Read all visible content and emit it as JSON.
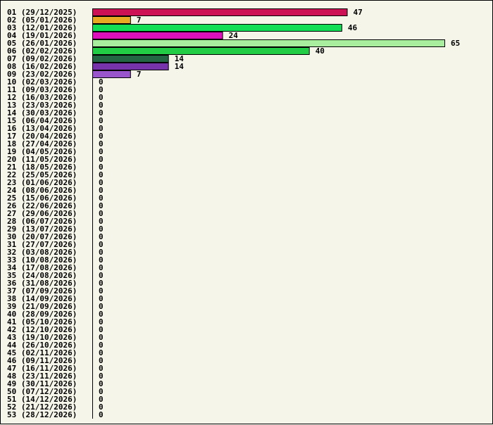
{
  "chart_data": {
    "type": "bar",
    "orientation": "horizontal",
    "title": "",
    "xlabel": "",
    "ylabel": "",
    "xlim": [
      0,
      65
    ],
    "grid": false,
    "categories": [
      "01 (29/12/2025)",
      "02 (05/01/2026)",
      "03 (12/01/2026)",
      "04 (19/01/2026)",
      "05 (26/01/2026)",
      "06 (02/02/2026)",
      "07 (09/02/2026)",
      "08 (16/02/2026)",
      "09 (23/02/2026)",
      "10 (02/03/2026)",
      "11 (09/03/2026)",
      "12 (16/03/2026)",
      "13 (23/03/2026)",
      "14 (30/03/2026)",
      "15 (06/04/2026)",
      "16 (13/04/2026)",
      "17 (20/04/2026)",
      "18 (27/04/2026)",
      "19 (04/05/2026)",
      "20 (11/05/2026)",
      "21 (18/05/2026)",
      "22 (25/05/2026)",
      "23 (01/06/2026)",
      "24 (08/06/2026)",
      "25 (15/06/2026)",
      "26 (22/06/2026)",
      "27 (29/06/2026)",
      "28 (06/07/2026)",
      "29 (13/07/2026)",
      "30 (20/07/2026)",
      "31 (27/07/2026)",
      "32 (03/08/2026)",
      "33 (10/08/2026)",
      "34 (17/08/2026)",
      "35 (24/08/2026)",
      "36 (31/08/2026)",
      "37 (07/09/2026)",
      "38 (14/09/2026)",
      "39 (21/09/2026)",
      "40 (28/09/2026)",
      "41 (05/10/2026)",
      "42 (12/10/2026)",
      "43 (19/10/2026)",
      "44 (26/10/2026)",
      "45 (02/11/2026)",
      "46 (09/11/2026)",
      "47 (16/11/2026)",
      "48 (23/11/2026)",
      "49 (30/11/2026)",
      "50 (07/12/2026)",
      "51 (14/12/2026)",
      "52 (21/12/2026)",
      "53 (28/12/2026)"
    ],
    "values": [
      47,
      7,
      46,
      24,
      65,
      40,
      14,
      14,
      7,
      0,
      0,
      0,
      0,
      0,
      0,
      0,
      0,
      0,
      0,
      0,
      0,
      0,
      0,
      0,
      0,
      0,
      0,
      0,
      0,
      0,
      0,
      0,
      0,
      0,
      0,
      0,
      0,
      0,
      0,
      0,
      0,
      0,
      0,
      0,
      0,
      0,
      0,
      0,
      0,
      0,
      0,
      0,
      0
    ],
    "colors": [
      "#cc1155",
      "#e8aa22",
      "#11dd55",
      "#dd11bb",
      "#a8ee9e",
      "#22cc44",
      "#226644",
      "#7733aa",
      "#9955cc"
    ]
  }
}
